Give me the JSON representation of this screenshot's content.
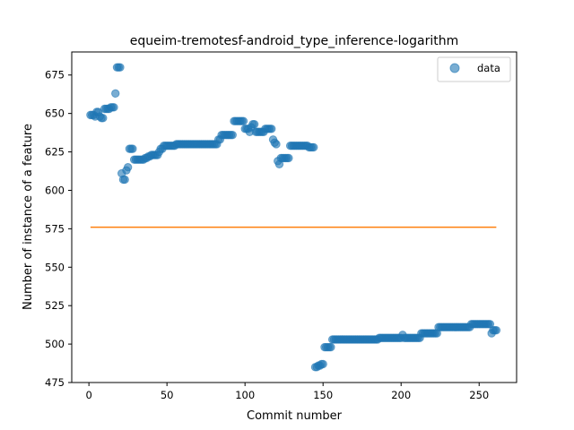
{
  "chart_data": {
    "type": "scatter",
    "title": "equeim-tremotesf-android_type_inference-logarithm",
    "xlabel": "Commit number",
    "ylabel": "Number of instance of a feature",
    "xlim": [
      -11,
      274
    ],
    "ylim": [
      475,
      690
    ],
    "xticks": [
      0,
      50,
      100,
      150,
      200,
      250
    ],
    "yticks": [
      475,
      500,
      525,
      550,
      575,
      600,
      625,
      650,
      675
    ],
    "legend": {
      "position": "top-right",
      "entries": [
        "data"
      ]
    },
    "series": [
      {
        "name": "data",
        "kind": "scatter",
        "color": "#1f77b4",
        "points": [
          [
            1,
            649
          ],
          [
            2,
            649
          ],
          [
            3,
            649
          ],
          [
            4,
            648
          ],
          [
            5,
            651
          ],
          [
            6,
            651
          ],
          [
            7,
            648
          ],
          [
            8,
            647
          ],
          [
            9,
            647
          ],
          [
            10,
            653
          ],
          [
            11,
            653
          ],
          [
            12,
            653
          ],
          [
            13,
            653
          ],
          [
            14,
            654
          ],
          [
            15,
            654
          ],
          [
            16,
            654
          ],
          [
            17,
            663
          ],
          [
            18,
            680
          ],
          [
            19,
            680
          ],
          [
            20,
            680
          ],
          [
            21,
            611
          ],
          [
            22,
            607
          ],
          [
            23,
            607
          ],
          [
            24,
            613
          ],
          [
            25,
            615
          ],
          [
            26,
            627
          ],
          [
            27,
            627
          ],
          [
            28,
            627
          ],
          [
            29,
            620
          ],
          [
            30,
            620
          ],
          [
            31,
            620
          ],
          [
            32,
            620
          ],
          [
            33,
            620
          ],
          [
            34,
            620
          ],
          [
            35,
            620
          ],
          [
            36,
            621
          ],
          [
            37,
            621
          ],
          [
            38,
            622
          ],
          [
            39,
            622
          ],
          [
            40,
            623
          ],
          [
            41,
            623
          ],
          [
            42,
            623
          ],
          [
            43,
            623
          ],
          [
            44,
            623
          ],
          [
            45,
            625
          ],
          [
            46,
            627
          ],
          [
            47,
            627
          ],
          [
            48,
            629
          ],
          [
            49,
            629
          ],
          [
            50,
            629
          ],
          [
            51,
            629
          ],
          [
            52,
            629
          ],
          [
            53,
            629
          ],
          [
            54,
            629
          ],
          [
            55,
            629
          ],
          [
            56,
            630
          ],
          [
            57,
            630
          ],
          [
            58,
            630
          ],
          [
            59,
            630
          ],
          [
            60,
            630
          ],
          [
            61,
            630
          ],
          [
            62,
            630
          ],
          [
            63,
            630
          ],
          [
            64,
            630
          ],
          [
            65,
            630
          ],
          [
            66,
            630
          ],
          [
            67,
            630
          ],
          [
            68,
            630
          ],
          [
            69,
            630
          ],
          [
            70,
            630
          ],
          [
            71,
            630
          ],
          [
            72,
            630
          ],
          [
            73,
            630
          ],
          [
            74,
            630
          ],
          [
            75,
            630
          ],
          [
            76,
            630
          ],
          [
            77,
            630
          ],
          [
            78,
            630
          ],
          [
            79,
            630
          ],
          [
            80,
            630
          ],
          [
            81,
            630
          ],
          [
            82,
            630
          ],
          [
            83,
            633
          ],
          [
            84,
            633
          ],
          [
            85,
            636
          ],
          [
            86,
            636
          ],
          [
            87,
            636
          ],
          [
            88,
            636
          ],
          [
            89,
            636
          ],
          [
            90,
            636
          ],
          [
            91,
            636
          ],
          [
            92,
            636
          ],
          [
            93,
            645
          ],
          [
            94,
            645
          ],
          [
            95,
            645
          ],
          [
            96,
            645
          ],
          [
            97,
            645
          ],
          [
            98,
            645
          ],
          [
            99,
            645
          ],
          [
            100,
            640
          ],
          [
            101,
            640
          ],
          [
            102,
            640
          ],
          [
            103,
            638
          ],
          [
            104,
            641
          ],
          [
            105,
            643
          ],
          [
            106,
            643
          ],
          [
            107,
            638
          ],
          [
            108,
            638
          ],
          [
            109,
            638
          ],
          [
            110,
            638
          ],
          [
            111,
            638
          ],
          [
            112,
            638
          ],
          [
            113,
            640
          ],
          [
            114,
            640
          ],
          [
            115,
            640
          ],
          [
            116,
            640
          ],
          [
            117,
            640
          ],
          [
            118,
            633
          ],
          [
            119,
            631
          ],
          [
            120,
            630
          ],
          [
            121,
            619
          ],
          [
            122,
            617
          ],
          [
            123,
            621
          ],
          [
            124,
            621
          ],
          [
            125,
            621
          ],
          [
            126,
            621
          ],
          [
            127,
            621
          ],
          [
            128,
            621
          ],
          [
            129,
            629
          ],
          [
            130,
            629
          ],
          [
            131,
            629
          ],
          [
            132,
            629
          ],
          [
            133,
            629
          ],
          [
            134,
            629
          ],
          [
            135,
            629
          ],
          [
            136,
            629
          ],
          [
            137,
            629
          ],
          [
            138,
            629
          ],
          [
            139,
            629
          ],
          [
            140,
            629
          ],
          [
            141,
            628
          ],
          [
            142,
            628
          ],
          [
            143,
            628
          ],
          [
            144,
            628
          ],
          [
            145,
            485
          ],
          [
            146,
            485
          ],
          [
            147,
            486
          ],
          [
            148,
            486
          ],
          [
            149,
            487
          ],
          [
            150,
            487
          ],
          [
            151,
            498
          ],
          [
            152,
            498
          ],
          [
            153,
            498
          ],
          [
            154,
            498
          ],
          [
            155,
            498
          ],
          [
            156,
            503
          ],
          [
            157,
            503
          ],
          [
            158,
            503
          ],
          [
            159,
            503
          ],
          [
            160,
            503
          ],
          [
            161,
            503
          ],
          [
            162,
            503
          ],
          [
            163,
            503
          ],
          [
            164,
            503
          ],
          [
            165,
            503
          ],
          [
            166,
            503
          ],
          [
            167,
            503
          ],
          [
            168,
            503
          ],
          [
            169,
            503
          ],
          [
            170,
            503
          ],
          [
            171,
            503
          ],
          [
            172,
            503
          ],
          [
            173,
            503
          ],
          [
            174,
            503
          ],
          [
            175,
            503
          ],
          [
            176,
            503
          ],
          [
            177,
            503
          ],
          [
            178,
            503
          ],
          [
            179,
            503
          ],
          [
            180,
            503
          ],
          [
            181,
            503
          ],
          [
            182,
            503
          ],
          [
            183,
            503
          ],
          [
            184,
            503
          ],
          [
            185,
            503
          ],
          [
            186,
            504
          ],
          [
            187,
            504
          ],
          [
            188,
            504
          ],
          [
            189,
            504
          ],
          [
            190,
            504
          ],
          [
            191,
            504
          ],
          [
            192,
            504
          ],
          [
            193,
            504
          ],
          [
            194,
            504
          ],
          [
            195,
            504
          ],
          [
            196,
            504
          ],
          [
            197,
            504
          ],
          [
            198,
            504
          ],
          [
            199,
            504
          ],
          [
            200,
            504
          ],
          [
            201,
            506
          ],
          [
            202,
            504
          ],
          [
            203,
            504
          ],
          [
            204,
            504
          ],
          [
            205,
            504
          ],
          [
            206,
            504
          ],
          [
            207,
            504
          ],
          [
            208,
            504
          ],
          [
            209,
            504
          ],
          [
            210,
            504
          ],
          [
            211,
            504
          ],
          [
            212,
            504
          ],
          [
            213,
            507
          ],
          [
            214,
            507
          ],
          [
            215,
            507
          ],
          [
            216,
            507
          ],
          [
            217,
            507
          ],
          [
            218,
            507
          ],
          [
            219,
            507
          ],
          [
            220,
            507
          ],
          [
            221,
            507
          ],
          [
            222,
            507
          ],
          [
            223,
            507
          ],
          [
            224,
            511
          ],
          [
            225,
            511
          ],
          [
            226,
            511
          ],
          [
            227,
            511
          ],
          [
            228,
            511
          ],
          [
            229,
            511
          ],
          [
            230,
            511
          ],
          [
            231,
            511
          ],
          [
            232,
            511
          ],
          [
            233,
            511
          ],
          [
            234,
            511
          ],
          [
            235,
            511
          ],
          [
            236,
            511
          ],
          [
            237,
            511
          ],
          [
            238,
            511
          ],
          [
            239,
            511
          ],
          [
            240,
            511
          ],
          [
            241,
            511
          ],
          [
            242,
            511
          ],
          [
            243,
            511
          ],
          [
            244,
            511
          ],
          [
            245,
            513
          ],
          [
            246,
            513
          ],
          [
            247,
            513
          ],
          [
            248,
            513
          ],
          [
            249,
            513
          ],
          [
            250,
            513
          ],
          [
            251,
            513
          ],
          [
            252,
            513
          ],
          [
            253,
            513
          ],
          [
            254,
            513
          ],
          [
            255,
            513
          ],
          [
            256,
            513
          ],
          [
            257,
            513
          ],
          [
            258,
            507
          ],
          [
            259,
            509
          ],
          [
            260,
            509
          ],
          [
            261,
            509
          ]
        ]
      },
      {
        "kind": "line",
        "color": "#ff7f0e",
        "x": [
          1,
          261
        ],
        "y": [
          576,
          576
        ]
      }
    ]
  }
}
